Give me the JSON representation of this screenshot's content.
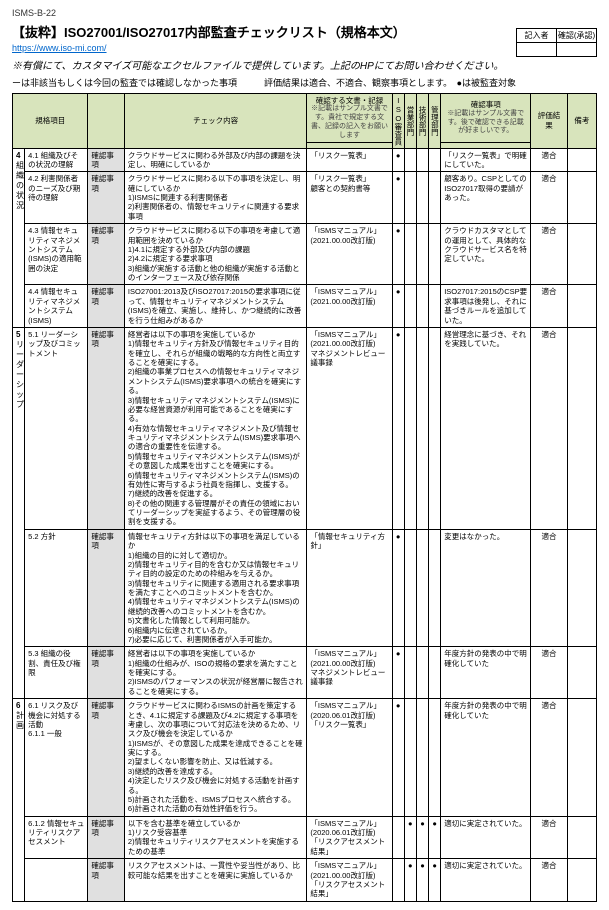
{
  "doc_id": "ISMS-B-22",
  "title": "【抜粋】ISO27001/ISO27017内部監査チェックリスト（規格本文）",
  "url": "https://www.iso-mi.com/",
  "note": "※有償にて、カスタマイズ可能なエクセルファイルで提供しています。上記のHPにてお問い合わせください。",
  "legend": "ーは非該当もしくは今回の監査では確認しなかった事項　　　評価結果は適合、不適合、観察事項とします。　●は被監査対象",
  "topbox": {
    "h1": "記入者",
    "h2": "確認(承認)"
  },
  "headers": {
    "col1": "規格項目",
    "col2": "チェック内容",
    "col3": "確認する文書・記録",
    "col3sub": "※記載はサンプル文書です。貴社で規定する文書、記録の記入をお願いします",
    "c_iso": "ISO審査員",
    "c_eiso": "営業部門",
    "c_cloud": "技術部門",
    "c_mgmt": "管理部門",
    "col4": "確認事項",
    "col4sub": "※記載はサンプル文書です。後で確認できる記載が好ましいです。",
    "col5": "評価結果",
    "col6": "備考"
  },
  "sections": [
    {
      "no": "4",
      "name": "組織の状況",
      "rows": [
        {
          "item": "4.1 組織及びその状況の理解",
          "type": "確認事項",
          "check": "クラウドサービスに関わる外部及び内部の課題を決定し、明確にしているか",
          "doc": "「リスク一覧表」",
          "dots": [
            1,
            0,
            0,
            0
          ],
          "confirm": "「リスク一覧表」で明確にしていた。",
          "result": "適合"
        },
        {
          "item": "4.2 利害関係者のニーズ及び期待の理解",
          "type": "確認事項",
          "check": "クラウドサービスに関わる以下の事項を決定し、明確にしているか\n1)ISMSに関連する利害関係者\n2)利害関係者の、情報セキュリティに関連する要求事項",
          "doc": "「リスク一覧表」\n顧客との契約書等",
          "dots": [
            1,
            0,
            0,
            0
          ],
          "confirm": "顧客あり。CSPとしてのISO27017取得の要請があった。",
          "result": "適合"
        },
        {
          "item": "4.3 情報セキュリティマネジメントシステム(ISMS)の適用範囲の決定",
          "type": "確認事項",
          "check": "クラウドサービスに関わる以下の事項を考慮して適用範囲を決めているか\n1)4.1に規定する外部及び内部の課題\n2)4.2に規定する要求事項\n3)組織が実施する活動と他の組織が実施する活動とのインターフェース及び依存関係",
          "doc": "「ISMSマニュアル」\n(2021.00.00改訂版)",
          "dots": [
            1,
            0,
            0,
            0
          ],
          "confirm": "クラウドカスタマとしての運用として、具体的なクラウドサービス名を特定していた。",
          "result": "適合"
        },
        {
          "item": "4.4 情報セキュリティマネジメントシステム(ISMS)",
          "type": "確認事項",
          "check": "ISO27001:2013及びISO27017:2015の要求事項に従って、情報セキュリティマネジメントシステム(ISMS)を確立、実施し、維持し、かつ継続的に改善を行う仕組みがあるか",
          "doc": "「ISMSマニュアル」\n(2021.00.00改訂版)",
          "dots": [
            1,
            0,
            0,
            0
          ],
          "confirm": "ISO27017:2015のCSP要求事項は後発し、それに基づきルールを追加していた。",
          "result": "適合"
        }
      ]
    },
    {
      "no": "5",
      "name": "リーダーシップ",
      "rows": [
        {
          "item": "5.1 リーダーシップ及びコミットメント",
          "type": "確認事項",
          "check": "経営者は以下の事項を実施しているか\n1)情報セキュリティ方針及び情報セキュリティ目的を確立し、それらが組織の戦略的な方向性と両立することを確実にする。\n2)組織の事業プロセスへの情報セキュリティマネジメントシステム(ISMS)要求事項への統合を確実にする。\n3)情報セキュリティマネジメントシステム(ISMS)に必要な経営資源が利用可能であることを確実にする。\n4)有効な情報セキュリティマネジメント及び情報セキュリティマネジメントシステム(ISMS)要求事項への適合の重要性を伝達する。\n5)情報セキュリティマネジメントシステム(ISMS)がその意図した成果を出すことを確実にする。\n6)情報セキュリティマネジメントシステム(ISMS)の有効性に寄与するよう社員を指揮し、支援する。\n7)継続的改善を促進する。\n8)その他の関連する管理層がその責任の領域においてリーダーシップを実証するよう、その管理層の役割を支援する。",
          "doc": "「ISMSマニュアル」\n(2021.00.00改訂版)\nマネジメントレビュー議事録",
          "dots": [
            1,
            0,
            0,
            0
          ],
          "confirm": "経営理念に基づき、それを実践していた。",
          "result": "適合"
        },
        {
          "item": "5.2 方針",
          "type": "確認事項",
          "check": "情報セキュリティ方針は以下の事項を満足しているか\n1)組織の目的に対して適切か。\n2)情報セキュリティ目的を含むか又は情報セキュリティ目的の設定のための枠組みを与えるか。\n3)情報セキュリティに関連する適用される要求事項を満たすことへのコミットメントを含むか。\n4)情報セキュリティマネジメントシステム(ISMS)の継続的改善へのコミットメントを含むか。\n5)文書化した情報として利用可能か。\n6)組織内に伝達されているか。\n7)必要に応じて、利害関係者が入手可能か。",
          "doc": "「情報セキュリティ方針」",
          "dots": [
            1,
            0,
            0,
            0
          ],
          "confirm": "変更はなかった。",
          "result": "適合"
        },
        {
          "item": "5.3 組織の役割、責任及び権限",
          "type": "確認事項",
          "check": "経営者は以下の事項を実施しているか\n1)組織の仕組みが、ISOの規格の要求を満たすことを確実にする。\n2)ISMSのパフォーマンスの状況が経営層に報告されることを確実にする。",
          "doc": "「ISMSマニュアル」\n(2021.00.00改訂版)\nマネジメントレビュー議事録",
          "dots": [
            1,
            0,
            0,
            0
          ],
          "confirm": "年度方針の発表の中で明確化していた",
          "result": "適合"
        }
      ]
    },
    {
      "no": "6",
      "name": "計画",
      "rows": [
        {
          "item": "6.1 リスク及び機会に対処する活動\n6.1.1 一般",
          "type": "確認事項",
          "check": "クラウドサービスに関わるISMSの計画を策定するとき、4.1に規定する課題及び4.2に規定する事項を考慮し、次の事項について対応法を決めるため、リスク及び機会を決定しているか\n1)ISMSが、その意図した成果を達成できることを確実にする。\n2)望ましくない影響を防止、又は低減する。\n3)継続的改善を達成する。\n4)決定したリスク及び機会に対処する活動を計画する。\n5)計画された活動を、ISMSプロセスへ統合する。\n6)計画された活動の有効性評価を行う。",
          "doc": "「ISMSマニュアル」\n(2020.06.01改訂版)\n「リスク一覧表」",
          "dots": [
            1,
            0,
            0,
            0
          ],
          "confirm": "年度方針の発表の中で明確化していた",
          "result": "適合"
        },
        {
          "item": "6.1.2 情報セキュリティリスクアセスメント",
          "type": "確認事項",
          "check": "以下を含む基準を確立しているか\n1)リスク受容基準\n2)情報セキュリティリスクアセスメントを実施するための基準",
          "doc": "「ISMSマニュアル」\n(2020.06.01改訂版)\n「リスクアセスメント結果」",
          "dots": [
            0,
            1,
            1,
            1
          ],
          "confirm": "適切に実定されていた。",
          "result": "適合"
        },
        {
          "item": "",
          "type": "確認事項",
          "check": "リスクアセスメントは、一貫性や妥当性があり、比較可能な結果を出すことを確実に実施しているか",
          "doc": "「ISMSマニュアル」\n(2021.00.00改訂版)\n「リスクアセスメント結果」",
          "dots": [
            0,
            1,
            1,
            1
          ],
          "confirm": "適切に実定されていた。",
          "result": "適合"
        }
      ]
    }
  ]
}
